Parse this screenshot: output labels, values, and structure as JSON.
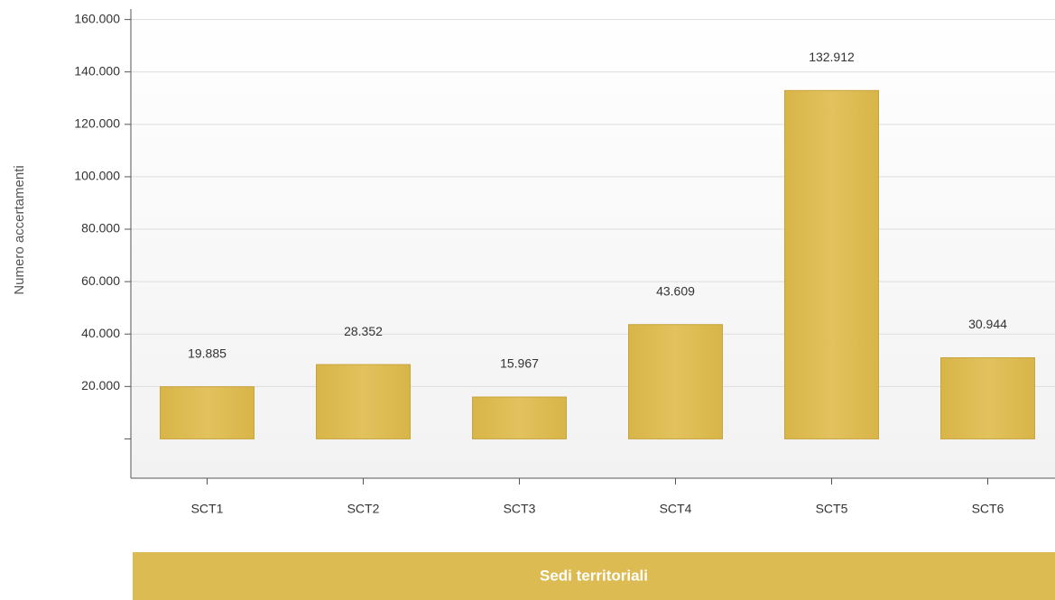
{
  "chart_data": {
    "type": "bar",
    "categories": [
      "SCT1",
      "SCT2",
      "SCT3",
      "SCT4",
      "SCT5",
      "SCT6"
    ],
    "values": [
      19885,
      28352,
      15967,
      43609,
      132912,
      30944
    ],
    "value_labels": [
      "19.885",
      "28.352",
      "15.967",
      "43.609",
      "132.912",
      "30.944"
    ],
    "color": "#dcbb52",
    "y_label": "Numero accertamenti",
    "x_label": "Sedi territoriali",
    "ylim": [
      -15000,
      164000
    ],
    "yticks": [
      {
        "value": 20000,
        "label": "20.000"
      },
      {
        "value": 40000,
        "label": "40.000"
      },
      {
        "value": 60000,
        "label": "60.000"
      },
      {
        "value": 80000,
        "label": "80.000"
      },
      {
        "value": 100000,
        "label": "100.000"
      },
      {
        "value": 120000,
        "label": "120.000"
      },
      {
        "value": 140000,
        "label": "140.000"
      },
      {
        "value": 160000,
        "label": "160.000"
      }
    ],
    "grid": true
  }
}
